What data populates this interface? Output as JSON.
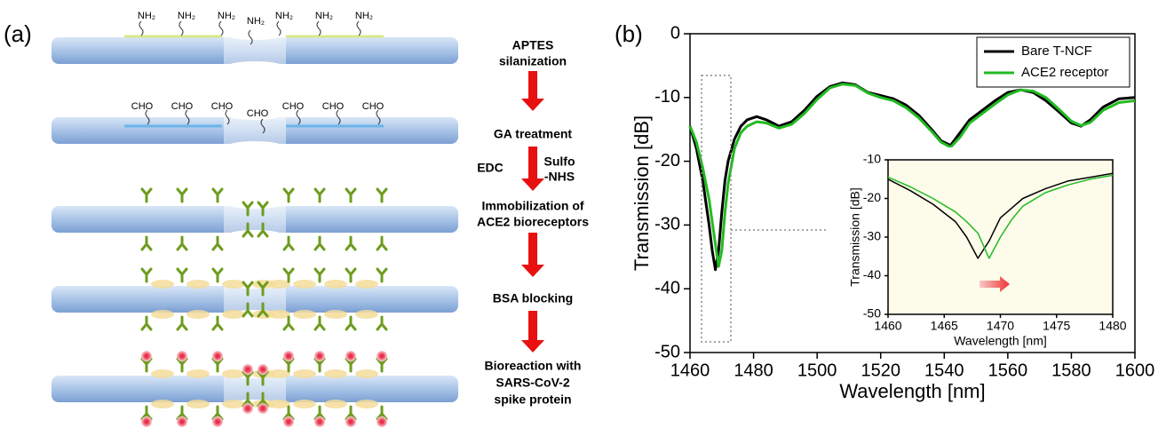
{
  "panel_a": {
    "label": "(a)",
    "amine_labels": [
      "NH₂",
      "NH₂",
      "NH₂",
      "NH₂",
      "NH₂",
      "NH₂",
      "NH₂"
    ],
    "aldehyde_labels": [
      "CHO",
      "CHO",
      "CHO",
      "CHO",
      "CHO",
      "CHO",
      "CHO"
    ],
    "steps": [
      {
        "lines": [
          "APTES",
          "silanization"
        ]
      },
      {
        "lines": [
          "GA treatment"
        ]
      },
      {
        "lines": [
          "Immobilization of",
          "ACE2 bioreceptors"
        ]
      },
      {
        "lines": [
          "BSA blocking"
        ]
      },
      {
        "lines": [
          "Bioreaction with",
          "SARS-CoV-2",
          "spike protein"
        ]
      }
    ],
    "reagents": {
      "left": "EDC",
      "right": [
        "Sulfo",
        "-NHS"
      ]
    }
  },
  "panel_b_label": "(b)",
  "chart_data": [
    {
      "type": "line",
      "xlabel": "Wavelength [nm]",
      "ylabel": "Transmission [dB]",
      "x": [
        1460,
        1462,
        1464,
        1466,
        1467,
        1468,
        1469,
        1470,
        1471,
        1472,
        1474,
        1476,
        1478,
        1481,
        1484,
        1488,
        1492,
        1496,
        1500,
        1504,
        1508,
        1512,
        1516,
        1520,
        1524,
        1528,
        1532,
        1536,
        1539,
        1542,
        1545,
        1548,
        1552,
        1556,
        1560,
        1564,
        1568,
        1572,
        1576,
        1580,
        1583,
        1586,
        1590,
        1595,
        1600
      ],
      "series": [
        {
          "name": "Bare T-NCF",
          "color": "#000000",
          "values": [
            -14.5,
            -18,
            -23,
            -30,
            -34,
            -37,
            -34,
            -28,
            -23,
            -20,
            -16.5,
            -14.5,
            -13.5,
            -13,
            -13.5,
            -14.5,
            -13.8,
            -12,
            -9.8,
            -8.3,
            -7.7,
            -8,
            -9.2,
            -9.7,
            -10.2,
            -11.2,
            -12.8,
            -15,
            -16.8,
            -17.5,
            -15.5,
            -13.5,
            -12,
            -10.5,
            -9.2,
            -8.8,
            -9.2,
            -10.5,
            -12.2,
            -14,
            -14.5,
            -13.5,
            -11.5,
            -10.2,
            -10
          ]
        },
        {
          "name": "ACE2 receptor",
          "color": "#22bb22",
          "values": [
            -14.5,
            -17,
            -21,
            -26,
            -29.5,
            -33,
            -36.5,
            -34,
            -28,
            -23.5,
            -18,
            -15.5,
            -14.5,
            -13.8,
            -14,
            -14.8,
            -14.2,
            -12.5,
            -10.3,
            -8.5,
            -7.9,
            -8.1,
            -9.3,
            -10,
            -10.5,
            -11.6,
            -13.2,
            -15.3,
            -17,
            -17.8,
            -16.2,
            -14,
            -12.5,
            -11,
            -9.6,
            -8.8,
            -9,
            -10,
            -11.8,
            -13.7,
            -14.4,
            -13.9,
            -12,
            -10.8,
            -10.5
          ]
        }
      ],
      "xlim": [
        1460,
        1600
      ],
      "xticks": [
        1460,
        1480,
        1500,
        1520,
        1540,
        1560,
        1580,
        1600
      ],
      "ylim": [
        -50,
        0
      ],
      "yticks": [
        -50,
        -40,
        -30,
        -20,
        -10,
        0
      ],
      "legend": "upper right"
    },
    {
      "type": "line",
      "xlabel": "Wavelength [nm]",
      "ylabel": "Transmission [dB]",
      "background": "#fdfbe9",
      "x": [
        1460,
        1462,
        1464,
        1466,
        1467,
        1468,
        1469,
        1470,
        1471,
        1472,
        1474,
        1476,
        1478,
        1480
      ],
      "series": [
        {
          "color": "#000000",
          "values": [
            -15,
            -18,
            -21.5,
            -26,
            -30,
            -35.5,
            -31,
            -25,
            -22.5,
            -20,
            -17.5,
            -15.5,
            -14.5,
            -13.5
          ]
        },
        {
          "color": "#22bb22",
          "values": [
            -14.5,
            -17,
            -20,
            -23.5,
            -26,
            -29,
            -35.5,
            -30,
            -25.5,
            -22,
            -18.5,
            -16.5,
            -15,
            -14
          ]
        }
      ],
      "xlim": [
        1460,
        1480
      ],
      "xticks": [
        1460,
        1465,
        1470,
        1475,
        1480
      ],
      "ylim": [
        -50,
        -10
      ],
      "yticks": [
        -50,
        -40,
        -30,
        -20,
        -10
      ]
    }
  ]
}
